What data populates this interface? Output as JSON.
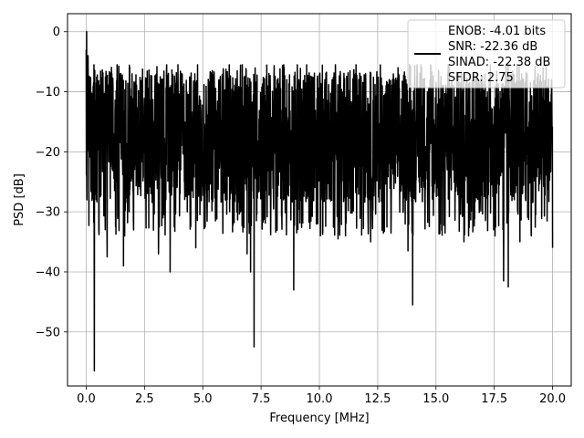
{
  "chart_data": {
    "type": "line",
    "xlabel": "Frequency [MHz]",
    "ylabel": "PSD [dB]",
    "xlim": [
      -0.8,
      20.8
    ],
    "ylim": [
      -59,
      3
    ],
    "xticks": [
      0.0,
      2.5,
      5.0,
      7.5,
      10.0,
      12.5,
      15.0,
      17.5,
      20.0
    ],
    "xtick_labels": [
      "0.0",
      "2.5",
      "5.0",
      "7.5",
      "10.0",
      "12.5",
      "15.0",
      "17.5",
      "20.0"
    ],
    "yticks": [
      0,
      -10,
      -20,
      -30,
      -40,
      -50
    ],
    "ytick_labels": [
      "0",
      "−10",
      "−20",
      "−30",
      "−40",
      "−50"
    ],
    "grid": true,
    "legend_position": "top-right",
    "series": [
      {
        "name": "ENOB: -4.01 bits\nSNR: -22.36 dB\nSINAD: -22.38 dB\nSFDR: 2.75",
        "color": "#000000",
        "x_start": 0.0,
        "x_end": 20.0,
        "peak_x": 0.02,
        "peak_y": 0.0,
        "noise_floor_mean": -17.5,
        "noise_top_approx": -7.0,
        "noise_bottom_typical": -32.0,
        "dips": [
          {
            "x": 0.35,
            "y": -56.5
          },
          {
            "x": 0.9,
            "y": -37.5
          },
          {
            "x": 1.6,
            "y": -39.0
          },
          {
            "x": 3.1,
            "y": -37.0
          },
          {
            "x": 3.6,
            "y": -40.0
          },
          {
            "x": 4.7,
            "y": -36.0
          },
          {
            "x": 6.9,
            "y": -37.0
          },
          {
            "x": 7.05,
            "y": -40.0
          },
          {
            "x": 7.2,
            "y": -52.5
          },
          {
            "x": 8.9,
            "y": -43.0
          },
          {
            "x": 10.8,
            "y": -34.5
          },
          {
            "x": 12.2,
            "y": -35.0
          },
          {
            "x": 13.8,
            "y": -36.5
          },
          {
            "x": 14.0,
            "y": -45.5
          },
          {
            "x": 16.2,
            "y": -35.0
          },
          {
            "x": 17.9,
            "y": -41.5
          },
          {
            "x": 18.1,
            "y": -42.5
          },
          {
            "x": 18.6,
            "y": -35.0
          },
          {
            "x": 20.0,
            "y": -36.0
          }
        ]
      }
    ],
    "legend_lines": [
      "ENOB: -4.01 bits",
      "SNR: -22.36 dB",
      "SINAD: -22.38 dB",
      "SFDR: 2.75"
    ]
  }
}
